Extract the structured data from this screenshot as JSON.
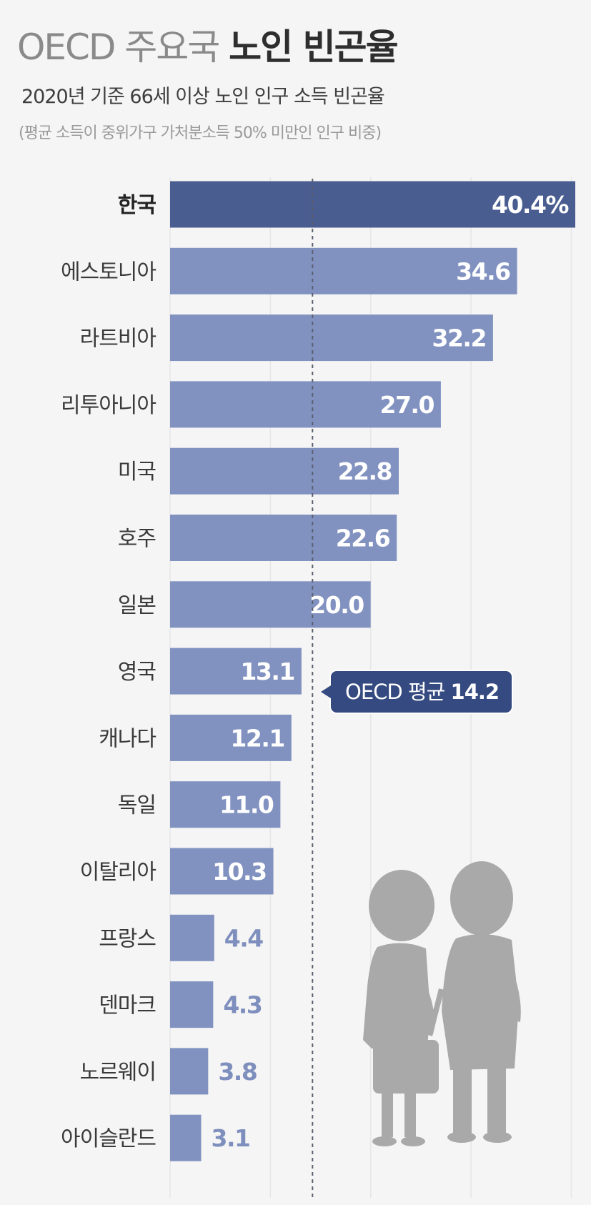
{
  "header": {
    "title_prefix": "OECD 주요국",
    "title_main": "노인 빈곤율",
    "subtitle": "2020년 기준 66세 이상 노인 인구 소득 빈곤율",
    "note": "(평균 소득이 중위가구 가처분소득 50% 미만인 인구 비중)"
  },
  "average": {
    "label": "OECD 평균",
    "value": 14.2,
    "value_text": "14.2"
  },
  "colors": {
    "highlight_bar": "#4a5d91",
    "bar": "#8292c0",
    "value_inside": "#ffffff",
    "value_outside": "#7f8fbd",
    "average_line": "#5a5f6e",
    "callout": "#344a80",
    "people": "#a9a9a9"
  },
  "chart_data": {
    "type": "bar",
    "orientation": "horizontal",
    "title": "OECD 주요국 노인 빈곤율",
    "categories": [
      "한국",
      "에스토니아",
      "라트비아",
      "리투아니아",
      "미국",
      "호주",
      "일본",
      "영국",
      "캐나다",
      "독일",
      "이탈리아",
      "프랑스",
      "덴마크",
      "노르웨이",
      "아이슬란드"
    ],
    "values": [
      40.4,
      34.6,
      32.2,
      27.0,
      22.8,
      22.6,
      20.0,
      13.1,
      12.1,
      11.0,
      10.3,
      4.4,
      4.3,
      3.8,
      3.1
    ],
    "value_labels": [
      "40.4%",
      "34.6",
      "32.2",
      "27.0",
      "22.8",
      "22.6",
      "20.0",
      "13.1",
      "12.1",
      "11.0",
      "10.3",
      "4.4",
      "4.3",
      "3.8",
      "3.1"
    ],
    "highlight": "한국",
    "unit": "%",
    "xlim": [
      0,
      40.4
    ],
    "reference_line": {
      "label": "OECD 평균",
      "value": 14.2
    },
    "grid": true
  }
}
